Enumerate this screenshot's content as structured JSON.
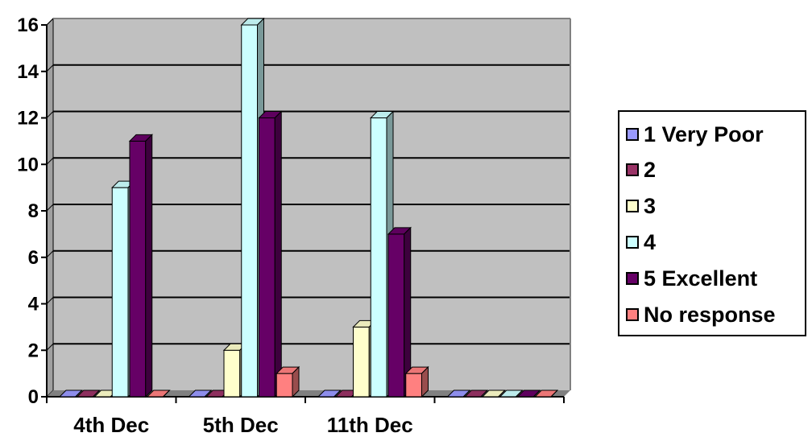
{
  "chart_data": {
    "type": "bar",
    "categories": [
      "4th Dec",
      "5th Dec",
      "11th Dec",
      ""
    ],
    "series": [
      {
        "name": "1 Very Poor",
        "color": "#9999ff",
        "values": [
          0,
          0,
          0,
          0
        ]
      },
      {
        "name": "2",
        "color": "#993366",
        "values": [
          0,
          0,
          0,
          0
        ]
      },
      {
        "name": "3",
        "color": "#ffffcc",
        "values": [
          0,
          2,
          3,
          0
        ]
      },
      {
        "name": "4",
        "color": "#ccffff",
        "values": [
          9,
          16,
          12,
          0
        ]
      },
      {
        "name": "5 Excellent",
        "color": "#660066",
        "values": [
          11,
          12,
          7,
          0
        ]
      },
      {
        "name": "No response",
        "color": "#ff8080",
        "values": [
          0,
          1,
          1,
          0
        ]
      }
    ],
    "yticks": [
      "0",
      "2",
      "4",
      "6",
      "8",
      "10",
      "12",
      "14",
      "16"
    ],
    "ylim": [
      0,
      16
    ],
    "grid": true,
    "plot_background": "#c0c0c0",
    "legend_position": "right",
    "style": "3d-column"
  }
}
